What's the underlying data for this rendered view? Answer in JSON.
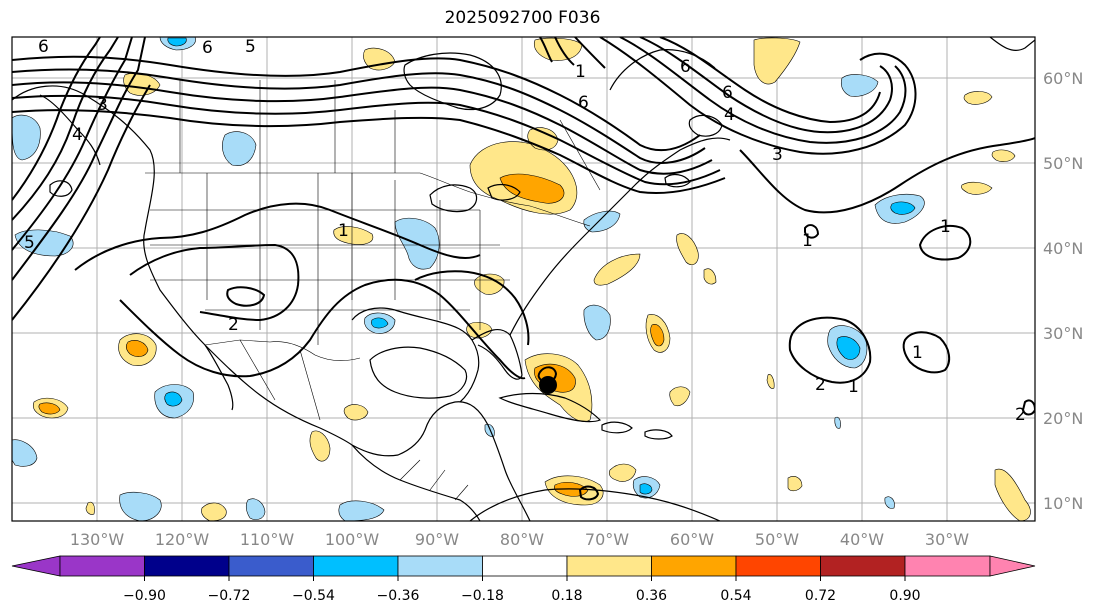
{
  "title": "2025092700 F036",
  "lon_labels": [
    "130°W",
    "120°W",
    "110°W",
    "100°W",
    "90°W",
    "80°W",
    "70°W",
    "60°W",
    "50°W",
    "40°W",
    "30°W"
  ],
  "lat_labels": [
    "60°N",
    "50°N",
    "40°N",
    "30°N",
    "20°N",
    "10°N"
  ],
  "colorbar": {
    "tick_labels": [
      "−0.90",
      "−0.72",
      "−0.54",
      "−0.36",
      "−0.18",
      "0.18",
      "0.36",
      "0.54",
      "0.72",
      "0.90"
    ],
    "colors": [
      "#9a36c8",
      "#00008b",
      "#3a5ccc",
      "#00bfff",
      "#a8dcf8",
      "#ffffff",
      "#ffe78a",
      "#ffa500",
      "#ff4500",
      "#b22222",
      "#ff83b0"
    ]
  },
  "contour_labels": [
    "6",
    "5",
    "6",
    "3",
    "4",
    "1",
    "6",
    "6",
    "6",
    "4",
    "3",
    "5",
    "1",
    "1",
    "1",
    "2",
    "2",
    "1",
    "1",
    "2"
  ],
  "colors": {
    "frame": "#000000",
    "grid": "#b0b0b0",
    "contour": "#000000"
  },
  "storm_marker": "storm-center"
}
